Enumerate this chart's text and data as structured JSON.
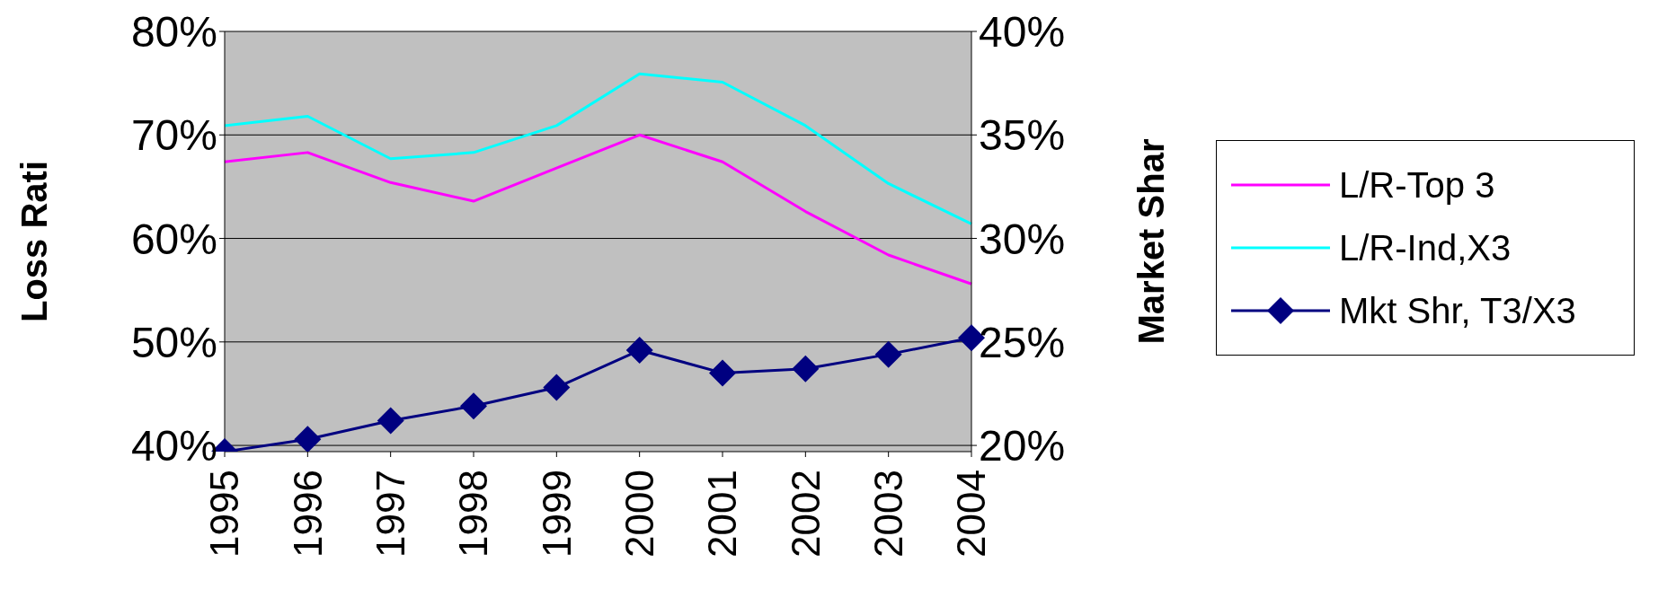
{
  "chart_data": {
    "type": "line",
    "ylabel": "Loss Rati",
    "y2label": "Market Shar",
    "categories": [
      "1995",
      "1996",
      "1997",
      "1998",
      "1999",
      "2000",
      "2001",
      "2002",
      "2003",
      "2004"
    ],
    "series": [
      {
        "name": "L/R-Top 3",
        "color": "#ff00ff",
        "marker": "none",
        "values": [
          67.4,
          68.3,
          65.4,
          63.6,
          66.8,
          70.0,
          67.4,
          62.6,
          58.4,
          55.6
        ]
      },
      {
        "name": "L/R-Ind,X3",
        "color": "#00ffff",
        "marker": "none",
        "values": [
          70.9,
          71.8,
          67.7,
          68.3,
          70.9,
          75.9,
          75.1,
          70.9,
          65.3,
          61.4
        ]
      },
      {
        "name": "Mkt Shr, T3/X3",
        "color": "#000080",
        "marker": "diamond",
        "axis": "y2",
        "values": [
          19.7,
          20.3,
          21.2,
          21.9,
          22.8,
          24.6,
          23.5,
          23.7,
          24.4,
          25.2
        ]
      }
    ],
    "ylim": [
      39.4,
      80
    ],
    "yticks": [
      {
        "value": 40,
        "label": "40%"
      },
      {
        "value": 50,
        "label": "50%"
      },
      {
        "value": 60,
        "label": "60%"
      },
      {
        "value": 70,
        "label": "70%"
      },
      {
        "value": 80,
        "label": "80%"
      }
    ],
    "y2lim": [
      19.7,
      40
    ],
    "y2ticks": [
      {
        "value": 20,
        "label": "20%"
      },
      {
        "value": 25,
        "label": "25%"
      },
      {
        "value": 30,
        "label": "30%"
      },
      {
        "value": 35,
        "label": "35%"
      },
      {
        "value": 40,
        "label": "40%"
      }
    ],
    "grid": "y",
    "legend": "right",
    "line_style": "solid"
  }
}
